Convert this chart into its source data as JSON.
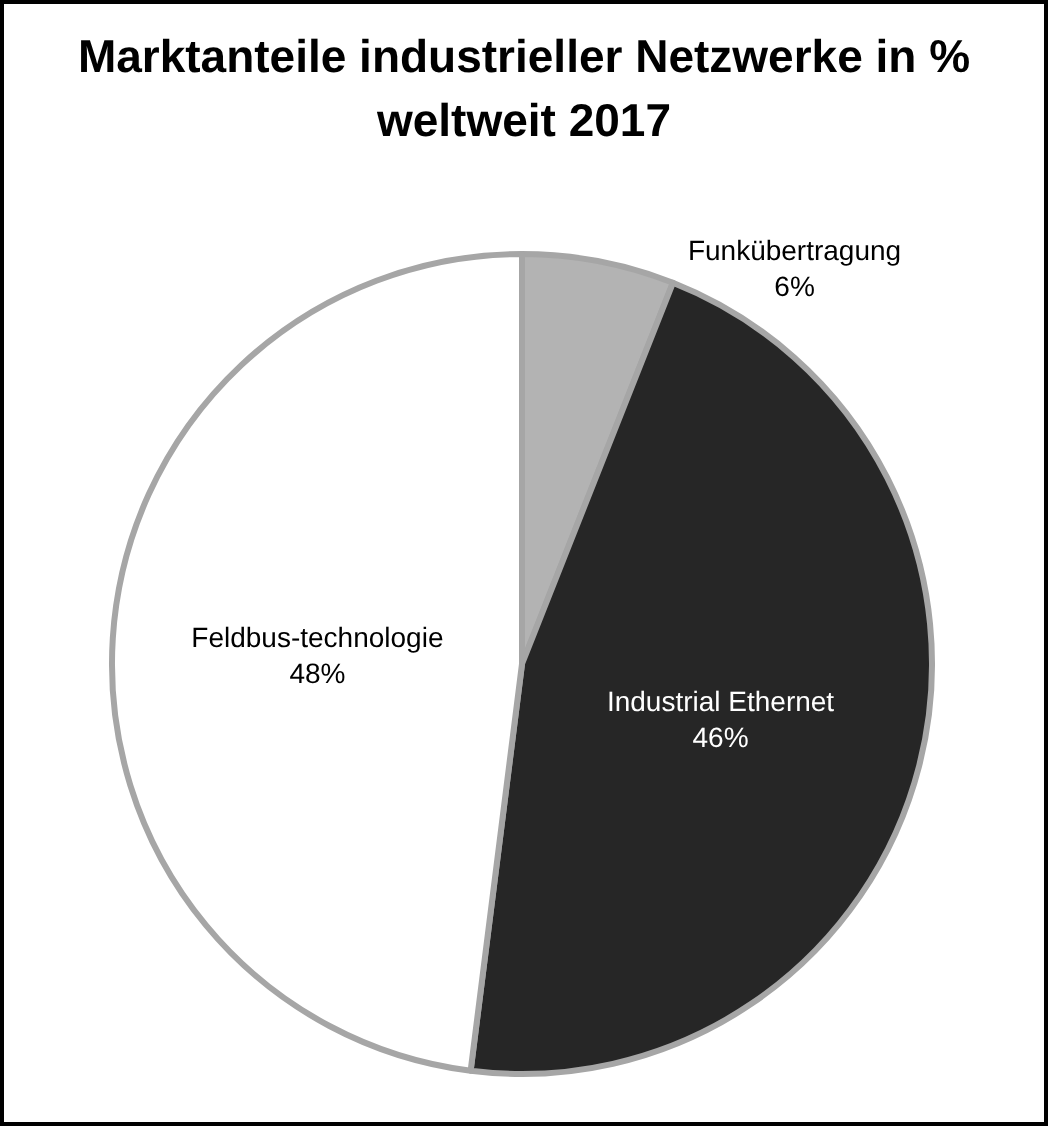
{
  "chart_data": {
    "type": "pie",
    "title": "Marktanteile industrieller Netzwerke in % weltweit 2017",
    "categories": [
      "Funkübertragung",
      "Industrial Ethernet",
      "Feldbus-technologie"
    ],
    "values": [
      6,
      46,
      48
    ],
    "value_labels": [
      "6%",
      "46%",
      "48%"
    ],
    "colors": [
      "#b3b3b3",
      "#262626",
      "#ffffff"
    ]
  }
}
